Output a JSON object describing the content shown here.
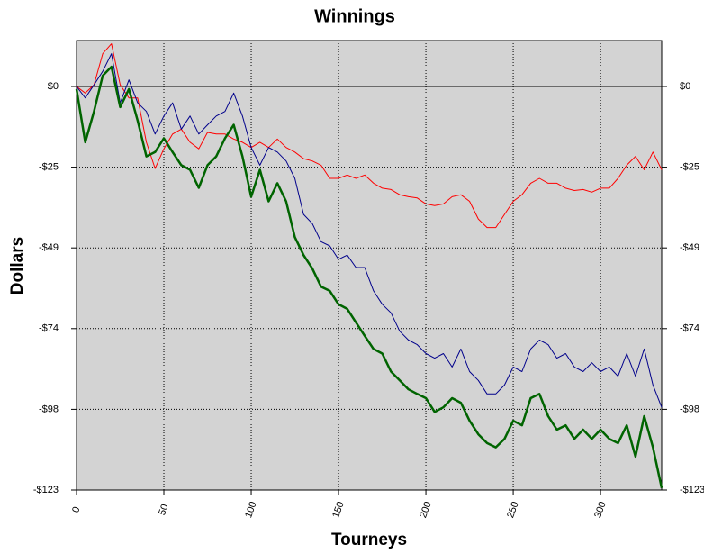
{
  "chart_data": {
    "type": "line",
    "title": "Winnings",
    "x_label": "Tourneys",
    "y_label": "Dollars",
    "x": [
      0,
      5,
      10,
      15,
      20,
      25,
      30,
      35,
      40,
      45,
      50,
      55,
      60,
      65,
      70,
      75,
      80,
      85,
      90,
      95,
      100,
      105,
      110,
      115,
      120,
      125,
      130,
      135,
      140,
      145,
      150,
      155,
      160,
      165,
      170,
      175,
      180,
      185,
      190,
      195,
      200,
      205,
      210,
      215,
      220,
      225,
      230,
      235,
      240,
      245,
      250,
      255,
      260,
      265,
      270,
      275,
      280,
      285,
      290,
      295,
      300,
      305,
      310,
      315,
      320,
      325,
      330,
      335
    ],
    "series": [
      {
        "name": "red",
        "color": "#ff0000",
        "width": 1,
        "values": [
          0,
          -2,
          0.5,
          10,
          13,
          0.5,
          -3.5,
          -3.5,
          -17,
          -25,
          -19,
          -14.5,
          -13,
          -17,
          -19,
          -14,
          -14.5,
          -14.5,
          -16,
          -17,
          -18.6,
          -17,
          -18.6,
          -16,
          -18.6,
          -20,
          -22,
          -22.7,
          -24,
          -28,
          -28,
          -27,
          -28,
          -27,
          -29.5,
          -31,
          -31.4,
          -33,
          -33.6,
          -34,
          -35.8,
          -36.3,
          -35.8,
          -33.6,
          -33,
          -35,
          -40.4,
          -43,
          -43,
          -39,
          -35,
          -33,
          -29.5,
          -28,
          -29.5,
          -29.5,
          -31,
          -31.7,
          -31.4,
          -32.2,
          -31,
          -31,
          -28,
          -24,
          -21.3,
          -25.4,
          -20,
          -25.4
        ]
      },
      {
        "name": "blue",
        "color": "#00008b",
        "width": 1,
        "values": [
          0,
          -3.5,
          0.5,
          4.6,
          10,
          -5,
          2,
          -5,
          -7.6,
          -14.5,
          -9,
          -5,
          -13,
          -9,
          -14.5,
          -11.7,
          -9,
          -7.6,
          -2,
          -9,
          -18.6,
          -24,
          -18.6,
          -20,
          -22.7,
          -28,
          -39,
          -41.8,
          -47.3,
          -48.6,
          -52.7,
          -51.4,
          -55.2,
          -55.2,
          -62.3,
          -66.4,
          -69,
          -74.6,
          -77.3,
          -78.7,
          -81.4,
          -82.8,
          -81.4,
          -85.5,
          -80,
          -86.9,
          -89.6,
          -93.7,
          -93.7,
          -91,
          -85.5,
          -86.9,
          -80,
          -77.3,
          -78.7,
          -82.8,
          -81.4,
          -85.5,
          -86.9,
          -84.2,
          -86.9,
          -85.5,
          -88.3,
          -81.4,
          -88.3,
          -80,
          -91,
          -97.8
        ]
      },
      {
        "name": "green",
        "color": "#006400",
        "width": 2.5,
        "values": [
          -0.8,
          -17,
          -7.6,
          3.3,
          6,
          -6.3,
          -0.8,
          -10.4,
          -21.3,
          -20,
          -15.8,
          -20,
          -24,
          -25.4,
          -30.9,
          -24,
          -21.3,
          -15.8,
          -11.7,
          -21.3,
          -33.6,
          -25.4,
          -35,
          -29.5,
          -35,
          -45.9,
          -51.4,
          -55.5,
          -61,
          -62.3,
          -66.4,
          -67.8,
          -71.9,
          -76,
          -80,
          -81.4,
          -86.9,
          -89.6,
          -92.3,
          -93.7,
          -95,
          -99.2,
          -97.8,
          -95,
          -96.4,
          -101.9,
          -106,
          -108.7,
          -110,
          -107.4,
          -101.9,
          -103.3,
          -95,
          -93.7,
          -100.5,
          -104.6,
          -103.3,
          -107.4,
          -104.6,
          -107.4,
          -104.6,
          -107.4,
          -108.7,
          -103.3,
          -112.8,
          -100.5,
          -110,
          -122.4
        ]
      }
    ],
    "xlim": [
      0,
      335
    ],
    "xticks": [
      0,
      50,
      100,
      150,
      200,
      250,
      300
    ],
    "ylim": [
      -123,
      14
    ],
    "yticks": [
      {
        "value": 0,
        "label": "$0"
      },
      {
        "value": -24.6,
        "label": "-$25"
      },
      {
        "value": -49.2,
        "label": "-$49"
      },
      {
        "value": -73.8,
        "label": "-$74"
      },
      {
        "value": -98.4,
        "label": "-$98"
      },
      {
        "value": -123,
        "label": "-$123"
      }
    ],
    "grid": true,
    "plot_background": "#d3d3d3"
  }
}
